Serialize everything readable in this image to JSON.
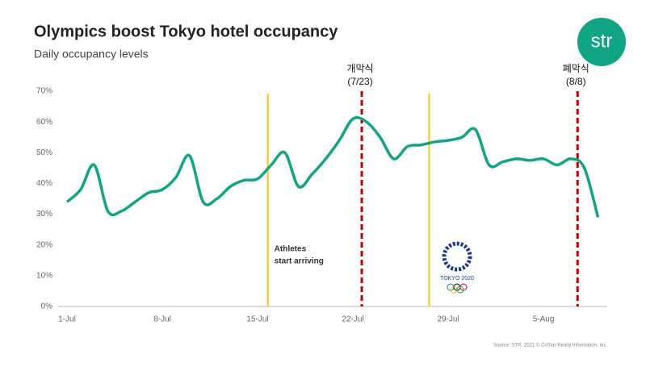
{
  "chart_data": {
    "type": "line",
    "title": "Olympics boost Tokyo hotel occupancy",
    "subtitle": "Daily occupancy levels",
    "source": "Source: STR. 2021 © CoStar Realty Information, Inc.",
    "logo": "str",
    "color": "#12a585",
    "categories": [
      "1-Jul",
      null,
      null,
      null,
      null,
      null,
      null,
      "8-Jul",
      null,
      null,
      null,
      null,
      null,
      null,
      "15-Jul",
      null,
      null,
      null,
      null,
      null,
      null,
      "22-Jul",
      null,
      null,
      null,
      null,
      null,
      null,
      "29-Jul",
      null,
      null,
      null,
      null,
      null,
      null,
      "5-Aug",
      null,
      null,
      null,
      null
    ],
    "values": [
      34,
      38,
      46,
      31,
      31,
      34,
      37,
      38,
      42,
      49,
      34,
      35,
      39,
      41,
      41.5,
      46,
      50,
      39,
      43,
      48,
      54,
      61,
      60,
      55,
      48,
      52,
      52.5,
      53.5,
      54,
      55,
      57.5,
      46,
      47,
      48,
      47.5,
      48,
      46,
      48,
      45,
      29
    ],
    "ylim": [
      0,
      70
    ],
    "yticks": [
      {
        "value": 0,
        "label": "0%"
      },
      {
        "value": 10,
        "label": "10%"
      },
      {
        "value": 20,
        "label": "20%"
      },
      {
        "value": 30,
        "label": "30%"
      },
      {
        "value": 40,
        "label": "40%"
      },
      {
        "value": 50,
        "label": "50%"
      },
      {
        "value": 60,
        "label": "60%"
      },
      {
        "value": 70,
        "label": "70%"
      }
    ],
    "markers": [
      {
        "x": 14.75,
        "color": "#f5c518",
        "style": "solid",
        "label": [
          "Athletes",
          "start arriving"
        ]
      },
      {
        "x": 21.65,
        "color": "#c00000",
        "style": "dashed",
        "label": [
          "개막식",
          "(7/23)"
        ]
      },
      {
        "x": 26.6,
        "color": "#f5c518",
        "style": "solid"
      },
      {
        "x": 37.5,
        "color": "#c00000",
        "style": "dashed",
        "label": [
          "폐막식",
          "(8/8)"
        ]
      }
    ],
    "emblem": "TOKYO 2020"
  }
}
